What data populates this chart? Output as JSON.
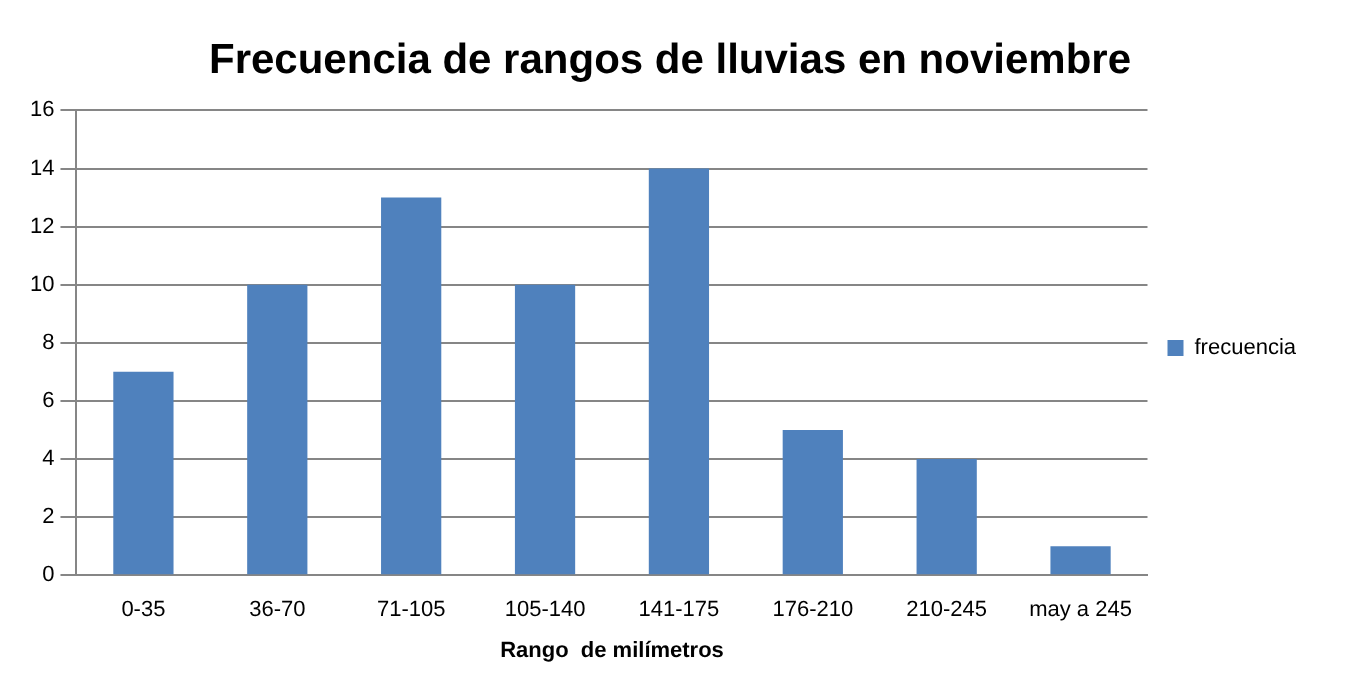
{
  "chart_data": {
    "type": "bar",
    "title": "Frecuencia de rangos de lluvias en noviembre",
    "xlabel": "Rango  de milímetros",
    "categories": [
      "0-35",
      "36-70",
      "71-105",
      "105-140",
      "141-175",
      "176-210",
      "210-245",
      "may a 245"
    ],
    "series": [
      {
        "name": "frecuencia",
        "color": "#4f81bd",
        "values": [
          7,
          10,
          13,
          10,
          14,
          5,
          4,
          1
        ]
      }
    ],
    "ylim": [
      0,
      16
    ],
    "yticks": [
      0,
      2,
      4,
      6,
      8,
      10,
      12,
      14,
      16
    ],
    "grid": "y",
    "legend": "right"
  }
}
